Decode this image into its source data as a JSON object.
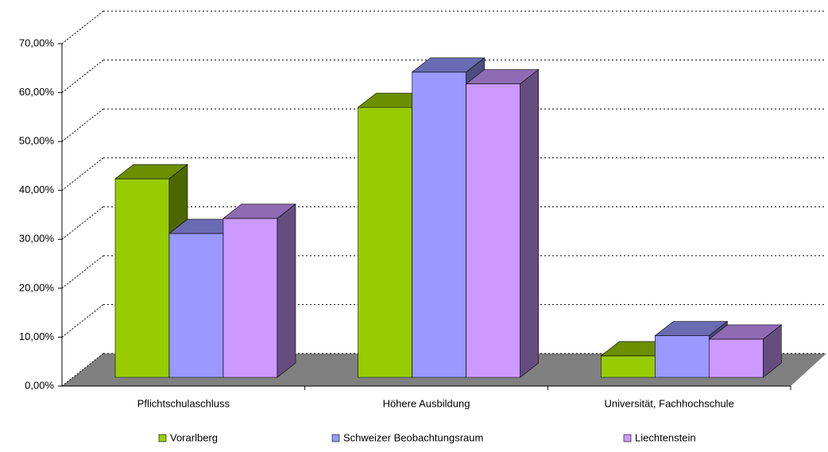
{
  "chart_data": {
    "type": "bar3d",
    "categories": [
      "Pflichtschulaschluss",
      "Höhere Ausbildung",
      "Universität, Fachhochschule"
    ],
    "series": [
      {
        "name": "Vorarlberg",
        "color": "#99cc00",
        "values": [
          40.6,
          55.2,
          4.4
        ]
      },
      {
        "name": "Schweizer Beobachtungsraum",
        "color": "#9999ff",
        "values": [
          29.4,
          62.4,
          8.5
        ]
      },
      {
        "name": "Liechtenstein",
        "color": "#cc99ff",
        "values": [
          32.5,
          60.0,
          7.8
        ]
      }
    ],
    "ylim": [
      0,
      70
    ],
    "yticks": [
      {
        "value": 0,
        "label": "0,00%"
      },
      {
        "value": 10,
        "label": "10,00%"
      },
      {
        "value": 20,
        "label": "20,00%"
      },
      {
        "value": 30,
        "label": "30,00%"
      },
      {
        "value": 40,
        "label": "40,00%"
      },
      {
        "value": 50,
        "label": "50,00%"
      },
      {
        "value": 60,
        "label": "60,00%"
      },
      {
        "value": 70,
        "label": "70,00%"
      }
    ],
    "grid": true,
    "floor_color": "#808080",
    "legend": "bottom"
  }
}
